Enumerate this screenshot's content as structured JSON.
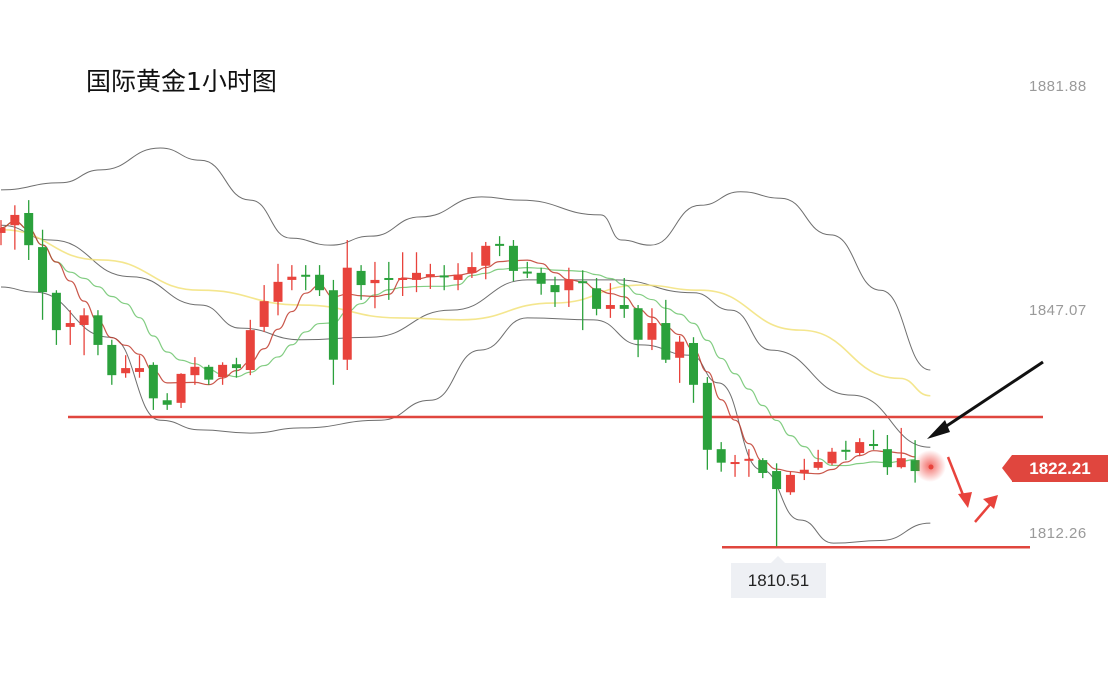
{
  "chart_data": {
    "type": "candlestick",
    "title": "国际黄金1小时图",
    "y_ticks": [
      "1881.88",
      "1847.07",
      "1812.26"
    ],
    "ylim": [
      1800.5,
      1895.4
    ],
    "grid": false,
    "current_price": "1822.21",
    "low_label": "1810.51",
    "horizontal_levels": [
      1830.6,
      1810.51
    ],
    "colors": {
      "up": "#e8433c",
      "down": "#2ba13c",
      "ma_short": "#c0392b",
      "ma_mid": "#6cc46c",
      "ma_long": "#f2e27a",
      "bands": "#555555",
      "level": "#e0463e"
    },
    "candles_ohlc": [
      [
        1859.2,
        1861.2,
        1857.3,
        1860.0
      ],
      [
        1860.4,
        1863.5,
        1856.6,
        1862.0
      ],
      [
        1862.3,
        1864.3,
        1855.0,
        1857.3
      ],
      [
        1857.0,
        1859.7,
        1845.7,
        1850.0
      ],
      [
        1849.9,
        1850.3,
        1841.8,
        1844.1
      ],
      [
        1844.6,
        1847.2,
        1841.8,
        1845.2
      ],
      [
        1844.9,
        1847.5,
        1840.2,
        1846.4
      ],
      [
        1846.4,
        1847.2,
        1840.2,
        1841.8
      ],
      [
        1841.8,
        1842.6,
        1835.6,
        1837.1
      ],
      [
        1837.4,
        1840.2,
        1836.7,
        1838.2
      ],
      [
        1837.6,
        1840.2,
        1836.7,
        1838.2
      ],
      [
        1838.7,
        1839.1,
        1831.7,
        1833.5
      ],
      [
        1833.2,
        1834.3,
        1831.7,
        1832.5
      ],
      [
        1832.8,
        1837.4,
        1832.0,
        1837.3
      ],
      [
        1837.1,
        1839.9,
        1835.6,
        1838.4
      ],
      [
        1838.4,
        1838.7,
        1835.6,
        1836.4
      ],
      [
        1836.8,
        1839.1,
        1835.6,
        1838.7
      ],
      [
        1838.8,
        1839.8,
        1836.7,
        1838.2
      ],
      [
        1837.9,
        1845.7,
        1837.1,
        1844.1
      ],
      [
        1844.6,
        1851.1,
        1843.8,
        1848.6
      ],
      [
        1848.5,
        1854.4,
        1846.4,
        1851.6
      ],
      [
        1851.9,
        1854.2,
        1850.3,
        1852.4
      ],
      [
        1852.7,
        1854.2,
        1850.3,
        1852.5
      ],
      [
        1852.7,
        1854.2,
        1849.4,
        1850.3
      ],
      [
        1850.3,
        1851.9,
        1835.6,
        1839.5
      ],
      [
        1839.5,
        1858.1,
        1837.9,
        1853.8
      ],
      [
        1853.3,
        1854.2,
        1848.8,
        1851.1
      ],
      [
        1851.4,
        1854.7,
        1847.5,
        1851.9
      ],
      [
        1852.2,
        1854.7,
        1848.8,
        1852.0
      ],
      [
        1852.0,
        1856.2,
        1849.4,
        1852.2
      ],
      [
        1851.9,
        1856.2,
        1850.0,
        1853.0
      ],
      [
        1852.4,
        1854.4,
        1850.5,
        1852.8
      ],
      [
        1852.6,
        1854.2,
        1850.3,
        1852.5
      ],
      [
        1851.9,
        1854.5,
        1850.3,
        1852.7
      ],
      [
        1853.0,
        1856.2,
        1852.2,
        1853.9
      ],
      [
        1854.1,
        1857.8,
        1852.0,
        1857.2
      ],
      [
        1857.5,
        1858.7,
        1855.6,
        1857.4
      ],
      [
        1857.2,
        1858.1,
        1851.7,
        1853.3
      ],
      [
        1853.2,
        1854.7,
        1852.2,
        1853.1
      ],
      [
        1853.0,
        1853.8,
        1849.6,
        1851.3
      ],
      [
        1851.1,
        1852.4,
        1847.7,
        1850.0
      ],
      [
        1850.3,
        1853.8,
        1847.7,
        1852.0
      ],
      [
        1851.7,
        1853.4,
        1844.1,
        1851.5
      ],
      [
        1850.6,
        1852.2,
        1846.4,
        1847.4
      ],
      [
        1847.4,
        1851.4,
        1846.0,
        1848.0
      ],
      [
        1848.0,
        1852.2,
        1846.0,
        1847.4
      ],
      [
        1847.5,
        1848.0,
        1839.9,
        1842.6
      ],
      [
        1842.6,
        1847.5,
        1841.0,
        1845.2
      ],
      [
        1845.2,
        1848.8,
        1839.0,
        1839.5
      ],
      [
        1839.8,
        1843.2,
        1835.9,
        1842.3
      ],
      [
        1842.1,
        1843.0,
        1832.8,
        1835.6
      ],
      [
        1835.9,
        1836.8,
        1822.4,
        1825.5
      ],
      [
        1825.6,
        1826.7,
        1822.1,
        1823.5
      ],
      [
        1823.3,
        1824.7,
        1821.3,
        1823.6
      ],
      [
        1823.8,
        1825.6,
        1821.3,
        1824.1
      ],
      [
        1823.9,
        1824.2,
        1821.1,
        1821.9
      ],
      [
        1822.2,
        1823.4,
        1810.51,
        1819.4
      ],
      [
        1818.9,
        1822.1,
        1818.5,
        1821.6
      ],
      [
        1821.9,
        1824.1,
        1820.8,
        1822.4
      ],
      [
        1822.7,
        1825.5,
        1822.4,
        1823.6
      ],
      [
        1823.4,
        1825.8,
        1823.1,
        1825.2
      ],
      [
        1825.5,
        1826.9,
        1823.9,
        1825.2
      ],
      [
        1825.0,
        1827.3,
        1824.5,
        1826.7
      ],
      [
        1826.4,
        1828.6,
        1825.5,
        1826.1
      ],
      [
        1825.6,
        1827.8,
        1821.6,
        1822.8
      ],
      [
        1822.8,
        1828.9,
        1822.6,
        1824.2
      ],
      [
        1823.9,
        1827.0,
        1820.4,
        1822.2
      ]
    ],
    "bollinger_upper": [
      [
        0,
        1865.9
      ],
      [
        4.3,
        1867.0
      ],
      [
        7.2,
        1869.0
      ],
      [
        11.5,
        1872.4
      ],
      [
        14.4,
        1870.5
      ],
      [
        18.0,
        1864.3
      ],
      [
        20.9,
        1858.4
      ],
      [
        23.8,
        1857.3
      ],
      [
        26.7,
        1858.7
      ],
      [
        30.3,
        1861.7
      ],
      [
        34.7,
        1864.8
      ],
      [
        37.5,
        1864.3
      ],
      [
        43.3,
        1862.0
      ],
      [
        44.8,
        1858.1
      ],
      [
        46.9,
        1857.3
      ],
      [
        50.5,
        1863.5
      ],
      [
        53.4,
        1865.6
      ],
      [
        56.3,
        1864.6
      ],
      [
        59.9,
        1858.9
      ],
      [
        63.5,
        1850.3
      ],
      [
        67.1,
        1837.9
      ]
    ],
    "bollinger_middle": [
      [
        0,
        1860.4
      ],
      [
        3.6,
        1858.1
      ],
      [
        9.4,
        1852.4
      ],
      [
        14.4,
        1848.0
      ],
      [
        17.3,
        1844.4
      ],
      [
        21.7,
        1842.6
      ],
      [
        26.7,
        1843.0
      ],
      [
        32.5,
        1847.2
      ],
      [
        38.0,
        1851.9
      ],
      [
        44.3,
        1851.9
      ],
      [
        50.0,
        1849.9
      ],
      [
        52.7,
        1847.2
      ],
      [
        55.6,
        1841.0
      ],
      [
        61.4,
        1834.0
      ],
      [
        67.1,
        1825.9
      ]
    ],
    "bollinger_lower": [
      [
        0,
        1850.8
      ],
      [
        2.4,
        1850.0
      ],
      [
        7.9,
        1843.0
      ],
      [
        11.5,
        1830.1
      ],
      [
        14.4,
        1828.6
      ],
      [
        18.0,
        1828.1
      ],
      [
        21.7,
        1828.9
      ],
      [
        27.4,
        1830.1
      ],
      [
        31.0,
        1833.2
      ],
      [
        34.6,
        1841.0
      ],
      [
        38.0,
        1846.0
      ],
      [
        42.8,
        1845.7
      ],
      [
        46.2,
        1841.8
      ],
      [
        49.8,
        1840.2
      ],
      [
        51.8,
        1835.9
      ],
      [
        54.9,
        1822.4
      ],
      [
        57.7,
        1814.6
      ],
      [
        60.1,
        1811.0
      ],
      [
        63.5,
        1811.4
      ],
      [
        67.1,
        1814.1
      ]
    ],
    "ma_long": [
      [
        0,
        1859.7
      ],
      [
        7.2,
        1855.0
      ],
      [
        14.4,
        1850.3
      ],
      [
        21.7,
        1848.0
      ],
      [
        28.8,
        1846.0
      ],
      [
        33.2,
        1845.7
      ],
      [
        39.9,
        1848.3
      ],
      [
        46.2,
        1851.1
      ],
      [
        50.5,
        1850.3
      ],
      [
        57.7,
        1844.1
      ],
      [
        64.9,
        1836.6
      ],
      [
        67.1,
        1833.9
      ]
    ]
  }
}
